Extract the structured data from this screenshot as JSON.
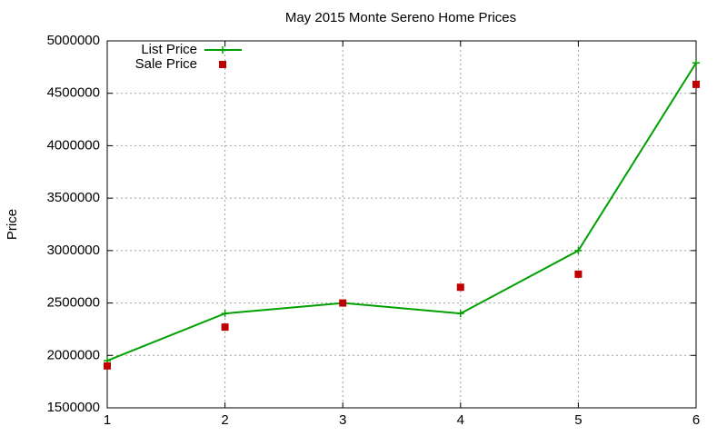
{
  "chart_data": {
    "type": "line",
    "title": "May 2015 Monte Sereno Home Prices",
    "y_label": "Price",
    "x": [
      1,
      2,
      3,
      4,
      5,
      6
    ],
    "series": [
      {
        "name": "List Price",
        "color": "#00a000",
        "style": "linespoints",
        "values": [
          1950000,
          2400000,
          2500000,
          2400000,
          3000000,
          4790000
        ]
      },
      {
        "name": "Sale Price",
        "color": "#c00000",
        "style": "points",
        "values": [
          1900000,
          2270000,
          2500000,
          2650000,
          2775000,
          4585000
        ]
      }
    ],
    "xlim": [
      1,
      6
    ],
    "xticks": [
      1,
      2,
      3,
      4,
      5,
      6
    ],
    "ylim": [
      1500000,
      5000000
    ],
    "yticks": [
      1500000,
      2000000,
      2500000,
      3000000,
      3500000,
      4000000,
      4500000,
      5000000
    ],
    "grid": true,
    "legend": "top-left"
  }
}
